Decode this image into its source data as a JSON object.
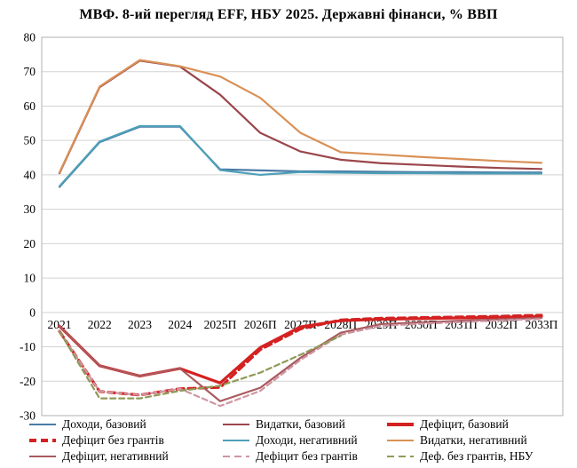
{
  "chart_data": {
    "type": "line",
    "title": "МВФ. 8-ий перегляд EFF, НБУ 2025. Державні фінанси,  % ВВП",
    "categories": [
      "2021",
      "2022",
      "2023",
      "2024",
      "2025П",
      "2026П",
      "2027П",
      "2028П",
      "2029П",
      "2030П",
      "2031П",
      "2032П",
      "2033П"
    ],
    "ylim": [
      -30,
      80
    ],
    "y_ticks": [
      80,
      70,
      60,
      50,
      40,
      30,
      20,
      10,
      0,
      -10,
      -20,
      -30
    ],
    "grid": true,
    "legend_position": "bottom",
    "legend_columns": 3,
    "colors": {
      "grid": "#d3d3d3",
      "plot_border": "#b0b0b0",
      "text": "#000000"
    },
    "series": [
      {
        "name": "Доходи, базовий",
        "color": "#4A7BA6",
        "dash": false,
        "width": 2.2,
        "values": [
          36.5,
          49.5,
          54,
          54,
          41.6,
          41.3,
          41,
          41,
          40.9,
          40.8,
          40.8,
          40.7,
          40.7
        ]
      },
      {
        "name": "Видатки, базовий",
        "color": "#9A464B",
        "dash": false,
        "width": 2.2,
        "values": [
          40.5,
          65.5,
          73.2,
          71.5,
          63.3,
          52.2,
          46.8,
          44.4,
          43.4,
          42.9,
          42.4,
          42,
          41.7
        ]
      },
      {
        "name": "Дефіцит, базовий",
        "color": "#D42121",
        "dash": false,
        "width": 3.2,
        "values": [
          -4,
          -15.5,
          -18.5,
          -16.3,
          -20.5,
          -10.2,
          -4.2,
          -2.4,
          -2,
          -1.8,
          -1.6,
          -1.4,
          -1.2
        ]
      },
      {
        "name": "Дефіцит без грантів",
        "color": "#D42121",
        "dash": true,
        "width": 3.2,
        "values": [
          -5.5,
          -23,
          -24,
          -22.2,
          -21.8,
          -10.8,
          -4.8,
          -2.2,
          -1.7,
          -1.5,
          -1.3,
          -1.1,
          -0.8
        ]
      },
      {
        "name": "Доходи, негативний",
        "color": "#4FA0B8",
        "dash": false,
        "width": 2.2,
        "values": [
          36.7,
          49.7,
          54.2,
          54.2,
          41.4,
          40,
          40.8,
          40.6,
          40.5,
          40.5,
          40.4,
          40.4,
          40.4
        ]
      },
      {
        "name": "Видатки, негативний",
        "color": "#D99156",
        "dash": false,
        "width": 2.2,
        "values": [
          40.7,
          65.7,
          73.4,
          71.6,
          68.6,
          62.4,
          52.2,
          46.6,
          45.9,
          45.2,
          44.6,
          44,
          43.5
        ]
      },
      {
        "name": "Дефіцит, негативний",
        "color": "#AA5A5E",
        "dash": false,
        "width": 2.2,
        "values": [
          -4,
          -15.5,
          -18.5,
          -16.3,
          -25.8,
          -21.9,
          -13.2,
          -5.9,
          -3.4,
          -2.9,
          -2.4,
          -2,
          -1.6
        ]
      },
      {
        "name": "Дефіцит без грантів",
        "color": "#CD96A2",
        "dash": true,
        "width": 2.2,
        "values": [
          -5.5,
          -23,
          -24,
          -22.2,
          -27.2,
          -22.8,
          -13.8,
          -6.5,
          -3.9,
          -3.3,
          -2.8,
          -2.3,
          -1.9
        ]
      },
      {
        "name": "Деф. без грантів, НБУ",
        "color": "#8F9A58",
        "dash": true,
        "width": 2.2,
        "values": [
          -5.5,
          -25,
          -25,
          -22.8,
          -21.3,
          -17.5,
          -12.3,
          -6.8,
          null,
          null,
          null,
          null,
          null
        ]
      }
    ]
  }
}
